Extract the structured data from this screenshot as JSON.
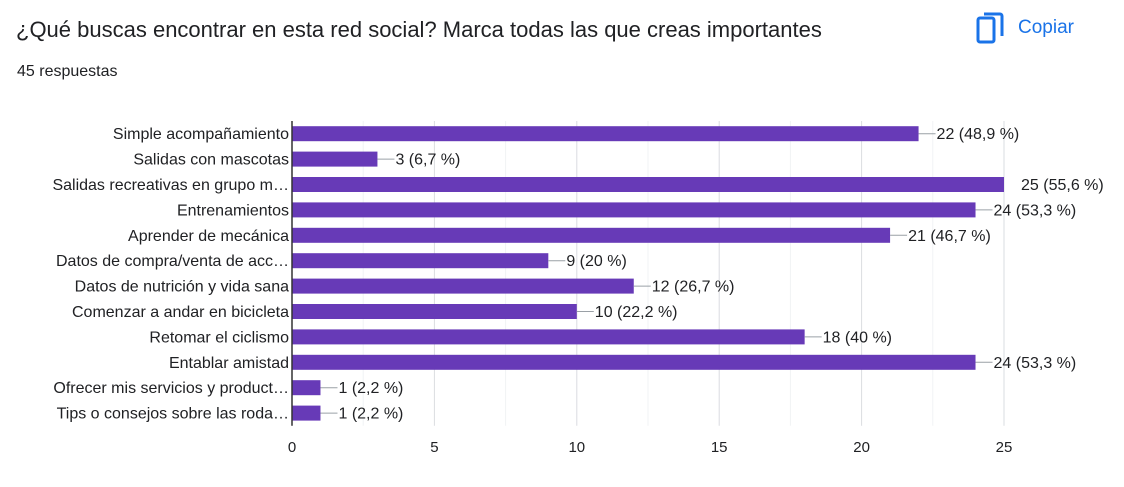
{
  "header": {
    "title": "¿Qué buscas encontrar en esta red social? Marca todas las que creas importantes",
    "responses": "45 respuestas",
    "copy_label": "Copiar",
    "copy_icon": "copy-icon",
    "accent_color": "#1a73e8"
  },
  "chart_data": {
    "type": "bar",
    "orientation": "horizontal",
    "bar_color": "#673ab7",
    "categories": [
      "Simple acompañamiento",
      "Salidas con mascotas",
      "Salidas recreativas en grupo m…",
      "Entrenamientos",
      "Aprender de mecánica",
      "Datos de compra/venta de acc…",
      "Datos de nutrición y vida sana",
      "Comenzar a andar en bicicleta",
      "Retomar el ciclismo",
      "Entablar amistad",
      "Ofrecer mis servicios y product…",
      "Tips o consejos sobre las roda…"
    ],
    "values": [
      22,
      3,
      25,
      24,
      21,
      9,
      12,
      10,
      18,
      24,
      1,
      1
    ],
    "data_labels": [
      "22 (48,9 %)",
      "3 (6,7 %)",
      "25 (55,6 %)",
      "24 (53,3 %)",
      "21 (46,7 %)",
      "9 (20 %)",
      "12 (26,7 %)",
      "10 (22,2 %)",
      "18 (40 %)",
      "24 (53,3 %)",
      "1 (2,2 %)",
      "1 (2,2 %)"
    ],
    "xlim": [
      0,
      25
    ],
    "xticks": [
      0,
      5,
      10,
      15,
      20,
      25
    ],
    "grid": true
  }
}
